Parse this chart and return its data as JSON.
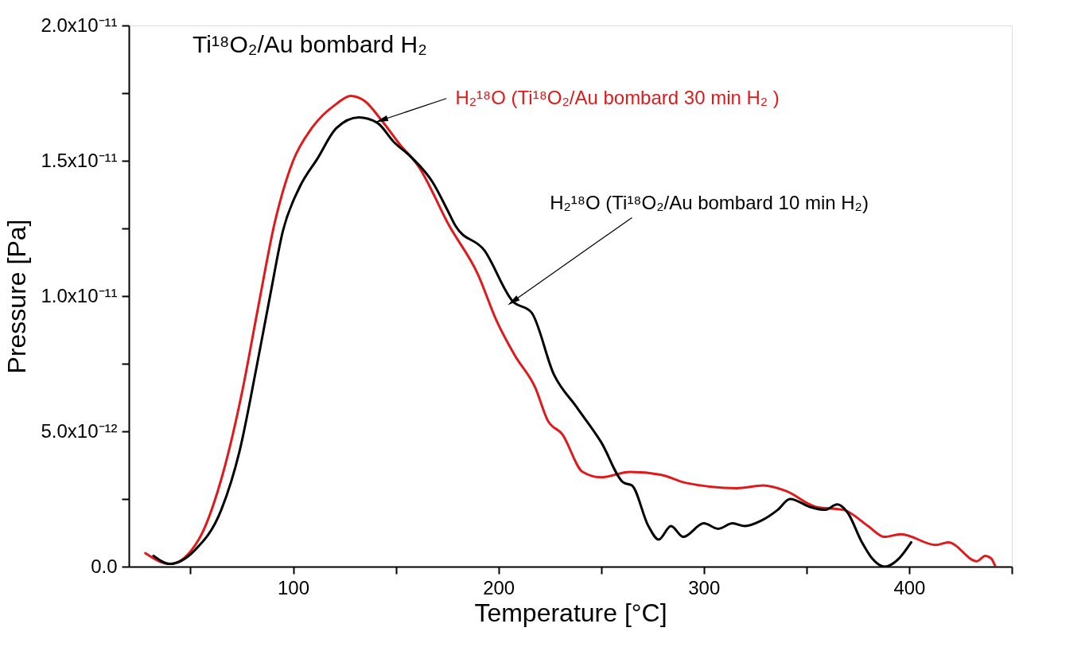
{
  "chart_data": {
    "type": "line",
    "title": "Ti¹⁸O₂/Au bombard H₂",
    "xlabel": "Temperature [°C]",
    "ylabel": "Pressure [Pa]",
    "xlim": [
      20,
      450
    ],
    "ylim": [
      0,
      2e-11
    ],
    "xticks": [
      {
        "value": 50,
        "label": null
      },
      100,
      {
        "value": 150,
        "label": null
      },
      200,
      {
        "value": 250,
        "label": null
      },
      300,
      {
        "value": 350,
        "label": null
      },
      400,
      {
        "value": 450,
        "label": null
      }
    ],
    "yticks": [
      {
        "value": 0,
        "label": "0.0"
      },
      {
        "value": 2.5e-12,
        "label": null
      },
      {
        "value": 5e-12,
        "label": "5.0x10⁻¹²"
      },
      {
        "value": 7.5e-12,
        "label": null
      },
      {
        "value": 1e-11,
        "label": "1.0x10⁻¹¹"
      },
      {
        "value": 1.25e-11,
        "label": null
      },
      {
        "value": 1.5e-11,
        "label": "1.5x10⁻¹¹"
      },
      {
        "value": 1.75e-11,
        "label": null
      },
      {
        "value": 2e-11,
        "label": "2.0x10⁻¹¹"
      }
    ],
    "grid": false,
    "marker": "none",
    "line_style": "solid",
    "series": [
      {
        "name": "H₂¹⁸O (Ti¹⁸O₂/Au bombard 30 min H₂ )",
        "color": "#e0191b",
        "x": [
          28,
          40,
          54,
          66,
          75,
          83,
          91,
          100,
          109,
          121,
          128,
          135,
          143,
          152,
          161,
          176,
          190,
          199,
          208,
          218,
          224,
          231,
          241,
          250,
          264,
          279,
          291,
          316,
          329,
          340,
          355,
          368,
          380,
          388,
          396,
          413,
          419,
          433,
          437,
          440,
          442
        ],
        "values": [
          5e-13,
          1e-13,
          1e-12,
          3.5e-12,
          6.4e-12,
          9.6e-12,
          1.27e-11,
          1.5e-11,
          1.62e-11,
          1.71e-11,
          1.74e-11,
          1.72e-11,
          1.65e-11,
          1.56e-11,
          1.48e-11,
          1.26e-11,
          1.08e-11,
          9.1e-12,
          7.8e-12,
          6.6e-12,
          5.4e-12,
          4.9e-12,
          3.5e-12,
          3.3e-12,
          3.5e-12,
          3.4e-12,
          3.1e-12,
          2.9e-12,
          3e-12,
          2.8e-12,
          2.2e-12,
          2.1e-12,
          1.5e-12,
          1.1e-12,
          1.2e-12,
          8e-13,
          9e-13,
          2e-13,
          4e-13,
          3e-13,
          0
        ]
      },
      {
        "name": "H₂¹⁸O (Ti¹⁸O₂/Au bombard 10 min H₂)",
        "color": "#000000",
        "x": [
          32,
          40,
          52,
          65,
          74,
          82,
          89,
          95,
          103,
          112,
          121,
          132,
          141,
          149,
          158,
          168,
          175,
          179,
          193,
          207,
          216,
          227,
          238,
          250,
          261,
          265,
          273,
          278,
          284,
          290,
          300,
          307,
          314,
          320,
          328,
          336,
          342,
          352,
          359,
          365,
          370,
          377,
          382,
          388,
          395,
          401
        ],
        "values": [
          4e-13,
          1e-13,
          6e-13,
          2.1e-12,
          4.3e-12,
          7.3e-12,
          1.01e-11,
          1.24e-11,
          1.4e-11,
          1.51e-11,
          1.62e-11,
          1.66e-11,
          1.64e-11,
          1.57e-11,
          1.51e-11,
          1.42e-11,
          1.32e-11,
          1.26e-11,
          1.17e-11,
          9.8e-12,
          9.4e-12,
          7.1e-12,
          5.9e-12,
          4.6e-12,
          3.1e-12,
          3e-12,
          1.5e-12,
          1e-12,
          1.5e-12,
          1.1e-12,
          1.6e-12,
          1.4e-12,
          1.6e-12,
          1.5e-12,
          1.7e-12,
          2.1e-12,
          2.5e-12,
          2.2e-12,
          2.1e-12,
          2.3e-12,
          2e-12,
          9e-13,
          3e-13,
          0,
          3e-13,
          9e-13
        ]
      }
    ]
  }
}
